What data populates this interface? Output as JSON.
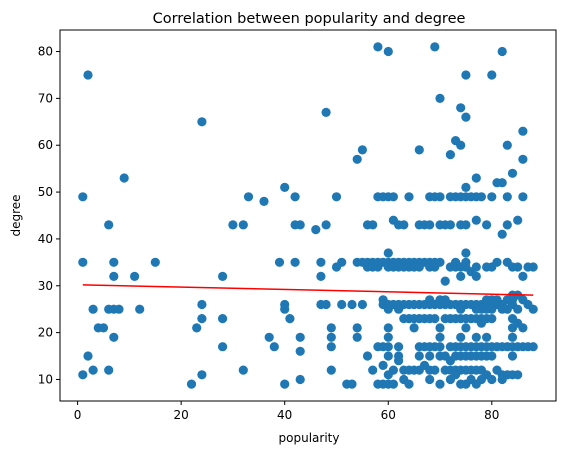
{
  "chart_data": {
    "type": "scatter",
    "title": "Correlation between popularity and degree",
    "xlabel": "popularity",
    "ylabel": "degree",
    "xlim": [
      -3.4,
      92.4
    ],
    "ylim": [
      5.4,
      84.6
    ],
    "xticks": [
      0,
      20,
      40,
      60,
      80
    ],
    "yticks": [
      10,
      20,
      30,
      40,
      50,
      60,
      70,
      80
    ],
    "grid": false,
    "legend": "none",
    "colors": {
      "points": "#1f77b4",
      "trend": "#ff0000"
    },
    "trend_line": {
      "x": [
        1,
        88
      ],
      "y": [
        30.2,
        28.0
      ]
    },
    "points": [
      [
        1,
        49
      ],
      [
        1,
        35
      ],
      [
        1,
        11
      ],
      [
        2,
        75
      ],
      [
        2,
        15
      ],
      [
        3,
        25
      ],
      [
        3,
        12
      ],
      [
        4,
        21
      ],
      [
        5,
        21
      ],
      [
        6,
        43
      ],
      [
        6,
        25
      ],
      [
        6,
        12
      ],
      [
        7,
        35
      ],
      [
        7,
        32
      ],
      [
        7,
        25
      ],
      [
        7,
        19
      ],
      [
        8,
        25
      ],
      [
        9,
        53
      ],
      [
        11,
        32
      ],
      [
        12,
        25
      ],
      [
        15,
        35
      ],
      [
        22,
        9
      ],
      [
        23,
        21
      ],
      [
        24,
        65
      ],
      [
        24,
        26
      ],
      [
        24,
        23
      ],
      [
        24,
        11
      ],
      [
        28,
        32
      ],
      [
        28,
        23
      ],
      [
        28,
        17
      ],
      [
        30,
        43
      ],
      [
        32,
        43
      ],
      [
        32,
        12
      ],
      [
        33,
        49
      ],
      [
        36,
        48
      ],
      [
        37,
        19
      ],
      [
        38,
        17
      ],
      [
        39,
        35
      ],
      [
        40,
        51
      ],
      [
        40,
        26
      ],
      [
        40,
        25
      ],
      [
        40,
        9
      ],
      [
        41,
        23
      ],
      [
        42,
        49
      ],
      [
        42,
        43
      ],
      [
        42,
        35
      ],
      [
        43,
        43
      ],
      [
        43,
        19
      ],
      [
        43,
        16
      ],
      [
        43,
        10
      ],
      [
        46,
        42
      ],
      [
        47,
        35
      ],
      [
        47,
        32
      ],
      [
        47,
        26
      ],
      [
        48,
        67
      ],
      [
        48,
        43
      ],
      [
        48,
        26
      ],
      [
        49,
        21
      ],
      [
        49,
        19
      ],
      [
        49,
        17
      ],
      [
        49,
        12
      ],
      [
        50,
        49
      ],
      [
        50,
        34
      ],
      [
        51,
        35
      ],
      [
        51,
        26
      ],
      [
        52,
        9
      ],
      [
        53,
        26
      ],
      [
        53,
        9
      ],
      [
        54,
        57
      ],
      [
        54,
        35
      ],
      [
        54,
        21
      ],
      [
        54,
        19
      ],
      [
        55,
        59
      ],
      [
        55,
        35
      ],
      [
        55,
        26
      ],
      [
        56,
        43
      ],
      [
        56,
        35
      ],
      [
        56,
        34
      ],
      [
        56,
        15
      ],
      [
        57,
        43
      ],
      [
        57,
        35
      ],
      [
        57,
        34
      ],
      [
        57,
        12
      ],
      [
        58,
        81
      ],
      [
        58,
        49
      ],
      [
        58,
        35
      ],
      [
        58,
        34
      ],
      [
        58,
        17
      ],
      [
        58,
        9
      ],
      [
        59,
        49
      ],
      [
        59,
        35
      ],
      [
        59,
        27
      ],
      [
        59,
        26
      ],
      [
        59,
        17
      ],
      [
        59,
        13
      ],
      [
        59,
        9
      ],
      [
        60,
        80
      ],
      [
        60,
        49
      ],
      [
        60,
        37
      ],
      [
        60,
        35
      ],
      [
        60,
        34
      ],
      [
        60,
        26
      ],
      [
        60,
        25
      ],
      [
        60,
        21
      ],
      [
        60,
        19
      ],
      [
        60,
        17
      ],
      [
        60,
        15
      ],
      [
        60,
        11
      ],
      [
        60,
        9
      ],
      [
        61,
        49
      ],
      [
        61,
        44
      ],
      [
        61,
        35
      ],
      [
        61,
        34
      ],
      [
        61,
        26
      ],
      [
        61,
        12
      ],
      [
        61,
        9
      ],
      [
        62,
        43
      ],
      [
        62,
        35
      ],
      [
        62,
        34
      ],
      [
        62,
        26
      ],
      [
        62,
        25
      ],
      [
        62,
        17
      ],
      [
        62,
        15
      ],
      [
        62,
        14
      ],
      [
        63,
        43
      ],
      [
        63,
        35
      ],
      [
        63,
        34
      ],
      [
        63,
        26
      ],
      [
        63,
        23
      ],
      [
        63,
        12
      ],
      [
        63,
        10
      ],
      [
        64,
        49
      ],
      [
        64,
        35
      ],
      [
        64,
        34
      ],
      [
        64,
        26
      ],
      [
        64,
        23
      ],
      [
        64,
        12
      ],
      [
        64,
        9
      ],
      [
        65,
        35
      ],
      [
        65,
        34
      ],
      [
        65,
        26
      ],
      [
        65,
        23
      ],
      [
        65,
        21
      ],
      [
        65,
        12
      ],
      [
        66,
        59
      ],
      [
        66,
        43
      ],
      [
        66,
        35
      ],
      [
        66,
        34
      ],
      [
        66,
        26
      ],
      [
        66,
        23
      ],
      [
        66,
        17
      ],
      [
        66,
        15
      ],
      [
        66,
        12
      ],
      [
        67,
        43
      ],
      [
        67,
        35
      ],
      [
        67,
        26
      ],
      [
        67,
        23
      ],
      [
        67,
        17
      ],
      [
        67,
        13
      ],
      [
        68,
        49
      ],
      [
        68,
        43
      ],
      [
        68,
        35
      ],
      [
        68,
        34
      ],
      [
        68,
        27
      ],
      [
        68,
        26
      ],
      [
        68,
        23
      ],
      [
        68,
        17
      ],
      [
        68,
        15
      ],
      [
        68,
        12
      ],
      [
        68,
        10
      ],
      [
        69,
        81
      ],
      [
        69,
        49
      ],
      [
        69,
        35
      ],
      [
        69,
        34
      ],
      [
        69,
        26
      ],
      [
        69,
        23
      ],
      [
        69,
        17
      ],
      [
        69,
        12
      ],
      [
        70,
        70
      ],
      [
        70,
        49
      ],
      [
        70,
        43
      ],
      [
        70,
        35
      ],
      [
        70,
        27
      ],
      [
        70,
        26
      ],
      [
        70,
        21
      ],
      [
        70,
        19
      ],
      [
        70,
        17
      ],
      [
        70,
        15
      ],
      [
        70,
        9
      ],
      [
        71,
        43
      ],
      [
        71,
        31
      ],
      [
        71,
        27
      ],
      [
        71,
        26
      ],
      [
        71,
        23
      ],
      [
        71,
        15
      ],
      [
        71,
        12
      ],
      [
        72,
        58
      ],
      [
        72,
        49
      ],
      [
        72,
        43
      ],
      [
        72,
        34
      ],
      [
        72,
        26
      ],
      [
        72,
        23
      ],
      [
        72,
        17
      ],
      [
        72,
        14
      ],
      [
        72,
        12
      ],
      [
        72,
        10
      ],
      [
        73,
        61
      ],
      [
        73,
        49
      ],
      [
        73,
        35
      ],
      [
        73,
        34
      ],
      [
        73,
        26
      ],
      [
        73,
        23
      ],
      [
        73,
        17
      ],
      [
        73,
        15
      ],
      [
        73,
        12
      ],
      [
        73,
        11
      ],
      [
        74,
        68
      ],
      [
        74,
        60
      ],
      [
        74,
        49
      ],
      [
        74,
        43
      ],
      [
        74,
        34
      ],
      [
        74,
        32
      ],
      [
        74,
        26
      ],
      [
        74,
        25
      ],
      [
        74,
        23
      ],
      [
        74,
        19
      ],
      [
        74,
        17
      ],
      [
        74,
        15
      ],
      [
        74,
        12
      ],
      [
        74,
        9
      ],
      [
        75,
        75
      ],
      [
        75,
        66
      ],
      [
        75,
        51
      ],
      [
        75,
        49
      ],
      [
        75,
        43
      ],
      [
        75,
        37
      ],
      [
        75,
        35
      ],
      [
        75,
        34
      ],
      [
        75,
        26
      ],
      [
        75,
        23
      ],
      [
        75,
        21
      ],
      [
        75,
        17
      ],
      [
        75,
        15
      ],
      [
        75,
        12
      ],
      [
        75,
        9
      ],
      [
        76,
        49
      ],
      [
        76,
        33
      ],
      [
        76,
        26
      ],
      [
        76,
        23
      ],
      [
        76,
        17
      ],
      [
        76,
        15
      ],
      [
        76,
        12
      ],
      [
        76,
        10
      ],
      [
        77,
        53
      ],
      [
        77,
        49
      ],
      [
        77,
        44
      ],
      [
        77,
        34
      ],
      [
        77,
        32
      ],
      [
        77,
        26
      ],
      [
        77,
        25
      ],
      [
        77,
        23
      ],
      [
        77,
        19
      ],
      [
        77,
        17
      ],
      [
        77,
        15
      ],
      [
        77,
        12
      ],
      [
        77,
        9
      ],
      [
        78,
        49
      ],
      [
        78,
        26
      ],
      [
        78,
        25
      ],
      [
        78,
        23
      ],
      [
        78,
        22
      ],
      [
        78,
        17
      ],
      [
        78,
        15
      ],
      [
        78,
        12
      ],
      [
        78,
        10
      ],
      [
        79,
        43
      ],
      [
        79,
        34
      ],
      [
        79,
        27
      ],
      [
        79,
        26
      ],
      [
        79,
        25
      ],
      [
        79,
        23
      ],
      [
        79,
        19
      ],
      [
        79,
        17
      ],
      [
        79,
        15
      ],
      [
        79,
        11
      ],
      [
        80,
        75
      ],
      [
        80,
        49
      ],
      [
        80,
        34
      ],
      [
        80,
        27
      ],
      [
        80,
        26
      ],
      [
        80,
        25
      ],
      [
        80,
        23
      ],
      [
        80,
        17
      ],
      [
        80,
        15
      ],
      [
        80,
        10
      ],
      [
        81,
        52
      ],
      [
        81,
        35
      ],
      [
        81,
        27
      ],
      [
        81,
        26
      ],
      [
        81,
        17
      ],
      [
        81,
        12
      ],
      [
        82,
        80
      ],
      [
        82,
        52
      ],
      [
        82,
        41
      ],
      [
        82,
        26
      ],
      [
        82,
        25
      ],
      [
        82,
        17
      ],
      [
        82,
        11
      ],
      [
        82,
        10
      ],
      [
        83,
        60
      ],
      [
        83,
        49
      ],
      [
        83,
        43
      ],
      [
        83,
        35
      ],
      [
        83,
        27
      ],
      [
        83,
        25
      ],
      [
        83,
        17
      ],
      [
        83,
        11
      ],
      [
        84,
        54
      ],
      [
        84,
        34
      ],
      [
        84,
        28
      ],
      [
        84,
        27
      ],
      [
        84,
        26
      ],
      [
        84,
        23
      ],
      [
        84,
        21
      ],
      [
        84,
        19
      ],
      [
        84,
        17
      ],
      [
        84,
        15
      ],
      [
        84,
        11
      ],
      [
        85,
        44
      ],
      [
        85,
        34
      ],
      [
        85,
        28
      ],
      [
        85,
        25
      ],
      [
        85,
        22
      ],
      [
        85,
        17
      ],
      [
        85,
        11
      ],
      [
        86,
        63
      ],
      [
        86,
        57
      ],
      [
        86,
        49
      ],
      [
        86,
        32
      ],
      [
        86,
        27
      ],
      [
        86,
        21
      ],
      [
        86,
        17
      ],
      [
        87,
        34
      ],
      [
        87,
        26
      ],
      [
        87,
        17
      ],
      [
        88,
        34
      ],
      [
        88,
        25
      ],
      [
        88,
        17
      ]
    ]
  }
}
